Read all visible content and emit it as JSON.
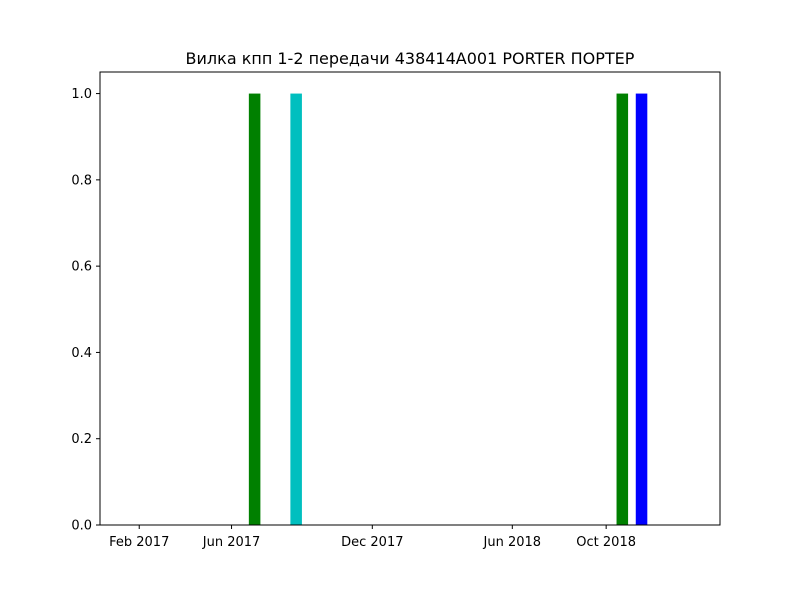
{
  "chart_data": {
    "type": "bar",
    "title": "Вилка кпп 1-2 передачи 438414A001 PORTER ПОРТЕР",
    "xlabel": "",
    "ylabel": "",
    "x_axis": "date",
    "xlim": [
      "2016-12-12",
      "2019-02-26"
    ],
    "ylim": [
      0,
      1.05
    ],
    "grid": false,
    "x_ticks": [
      {
        "date": "2017-02-01",
        "label": "Feb 2017"
      },
      {
        "date": "2017-06-01",
        "label": "Jun 2017"
      },
      {
        "date": "2017-12-01",
        "label": "Dec 2017"
      },
      {
        "date": "2018-06-01",
        "label": "Jun 2018"
      },
      {
        "date": "2018-10-01",
        "label": "Oct 2018"
      }
    ],
    "y_ticks": [
      {
        "value": 0.0,
        "label": "0.0"
      },
      {
        "value": 0.2,
        "label": "0.2"
      },
      {
        "value": 0.4,
        "label": "0.4"
      },
      {
        "value": 0.6,
        "label": "0.6"
      },
      {
        "value": 0.8,
        "label": "0.8"
      },
      {
        "value": 1.0,
        "label": "1.0"
      }
    ],
    "bars": [
      {
        "date": "2017-07-01",
        "value": 1,
        "color": "#008000"
      },
      {
        "date": "2017-08-24",
        "value": 1,
        "color": "#00bfbf"
      },
      {
        "date": "2018-10-22",
        "value": 1,
        "color": "#008000"
      },
      {
        "date": "2018-11-16",
        "value": 1,
        "color": "#0000ff"
      }
    ]
  }
}
